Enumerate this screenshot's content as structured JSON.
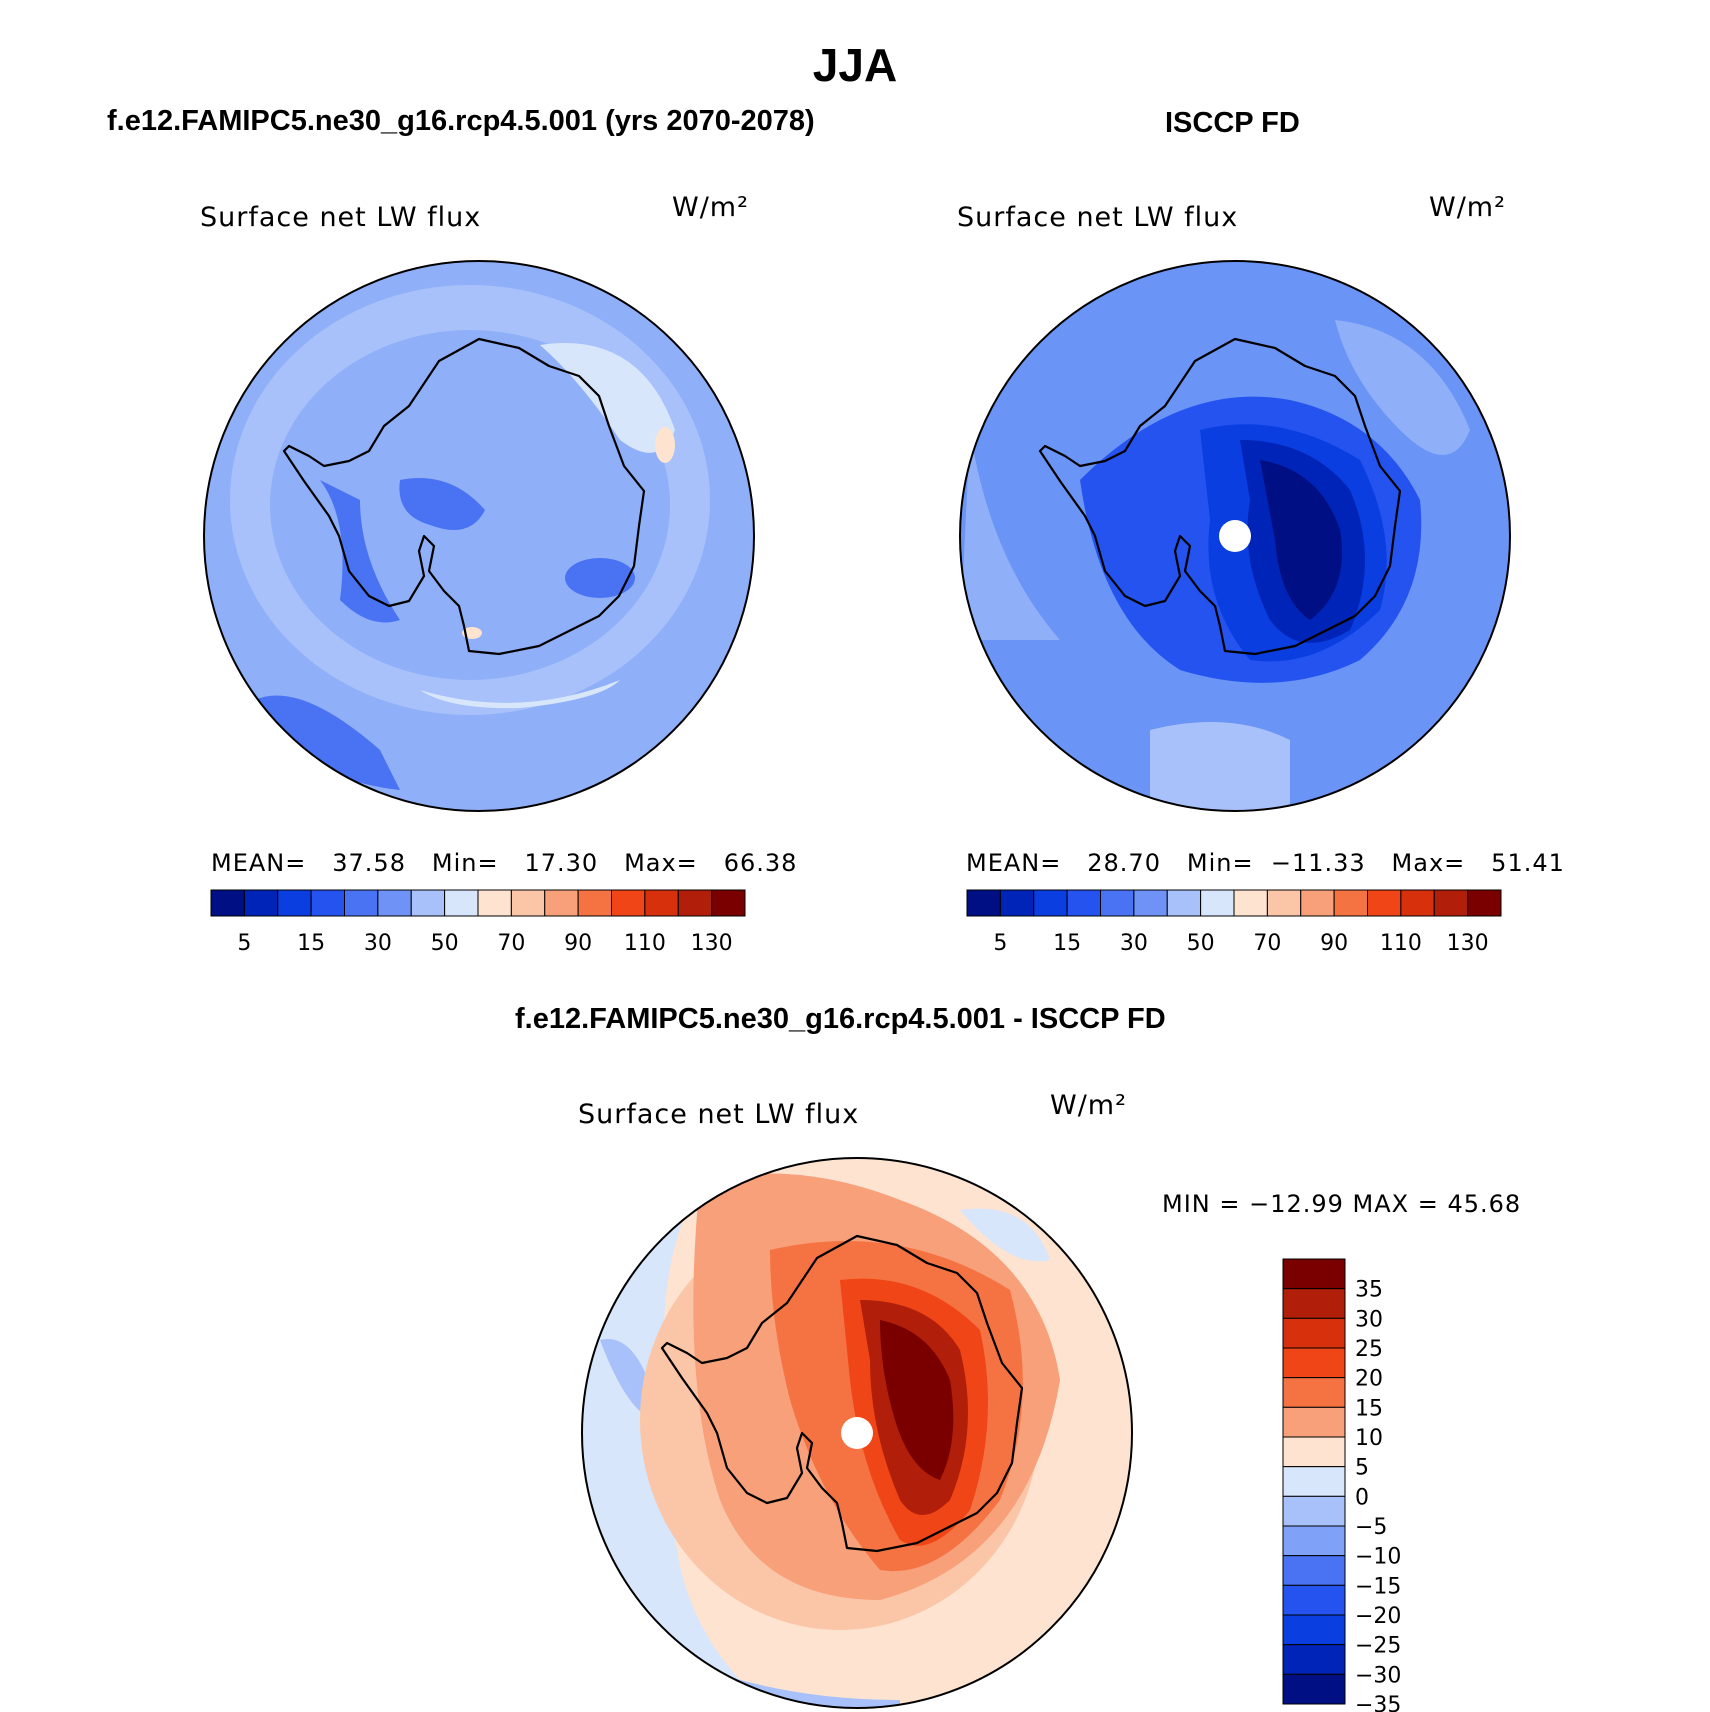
{
  "figure": {
    "title": "JJA",
    "ocean_color": "#8fb0f8"
  },
  "panels": [
    {
      "id": "model",
      "title": "f.e12.FAMIPC5.ne30_g16.rcp4.5.001 (yrs 2070-2078)",
      "variable": "Surface net LW flux",
      "units": "W/m²",
      "stats": {
        "mean_label": "MEAN=",
        "mean": "37.58",
        "min_label": "Min=",
        "min": "17.30",
        "max_label": "Max=",
        "max": "66.38"
      },
      "background": "#8fb0f8"
    },
    {
      "id": "obs",
      "title": "ISCCP FD",
      "variable": "Surface net LW flux",
      "units": "W/m²",
      "stats": {
        "mean_label": "MEAN=",
        "mean": "28.70",
        "min_label": "Min=",
        "min": "−11.33",
        "max_label": "Max=",
        "max": "51.41"
      },
      "background": "#6a94f5"
    },
    {
      "id": "diff",
      "title": "f.e12.FAMIPC5.ne30_g16.rcp4.5.001 - ISCCP FD",
      "variable": "Surface net LW flux",
      "units": "W/m²",
      "stats": {
        "text": "MIN = −12.99 MAX =  45.68"
      },
      "background": "#fde3d0"
    }
  ],
  "colorbar_abs": {
    "colors": [
      "#000f84",
      "#0024b7",
      "#0a3ee0",
      "#2453f0",
      "#4a73f3",
      "#6e92f6",
      "#a8c1fa",
      "#d8e6fc",
      "#fde3d0",
      "#fbc6a8",
      "#f8a07a",
      "#f57342",
      "#f04516",
      "#d7300c",
      "#b11f0a",
      "#7a0000"
    ],
    "labels": [
      "5",
      "15",
      "30",
      "50",
      "70",
      "90",
      "110",
      "130"
    ]
  },
  "colorbar_diff": {
    "colors": [
      "#7a0000",
      "#b11f0a",
      "#d7300c",
      "#f04516",
      "#f57342",
      "#f8a07a",
      "#fde3d0",
      "#d8e6fc",
      "#a8c1fa",
      "#7fa2f8",
      "#4a73f3",
      "#2453f0",
      "#0a3ee0",
      "#0024b7",
      "#000f84"
    ],
    "labels": [
      "35",
      "30",
      "25",
      "20",
      "15",
      "10",
      "5",
      "0",
      "−5",
      "−10",
      "−15",
      "−20",
      "−25",
      "−30",
      "−35"
    ]
  }
}
